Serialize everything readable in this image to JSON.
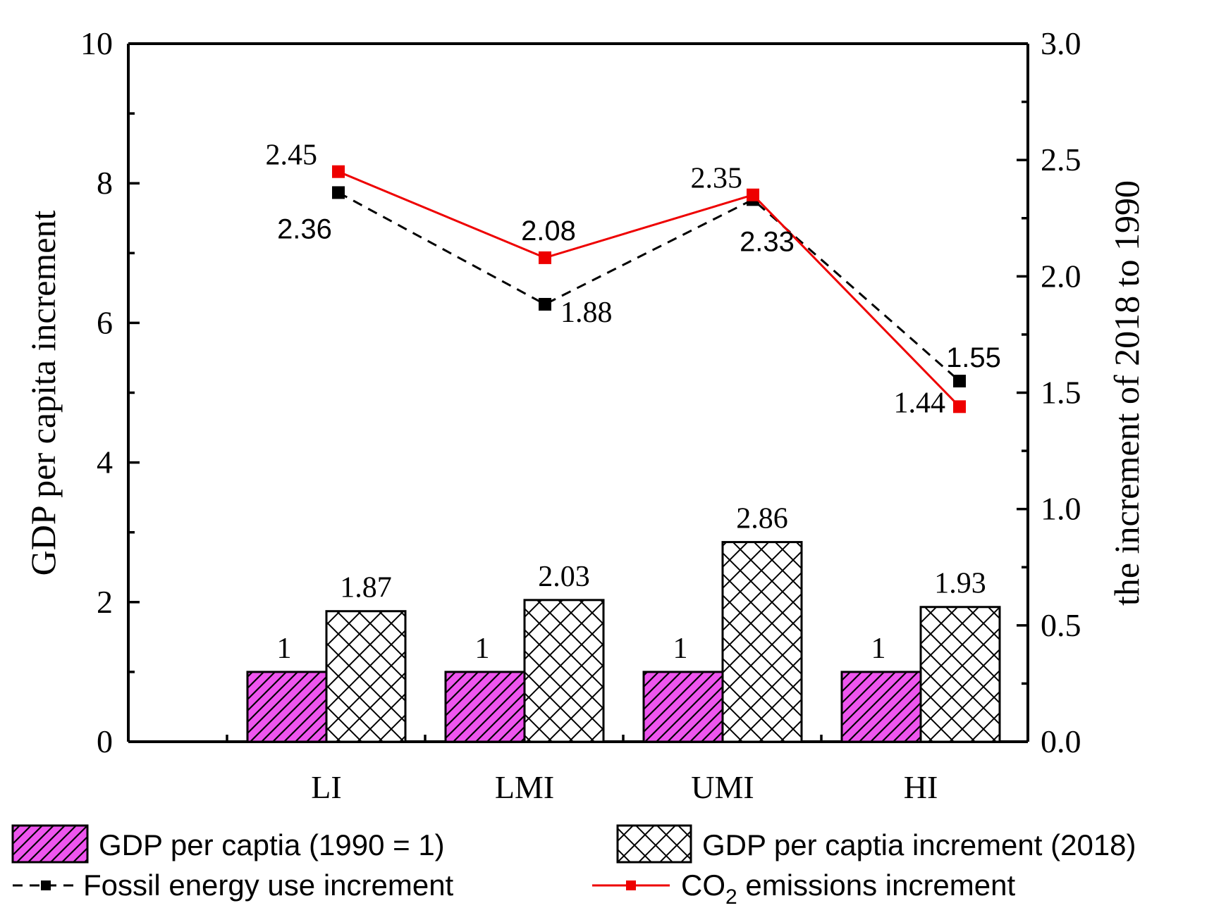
{
  "chart_data": {
    "type": "bar",
    "categories": [
      "LI",
      "LMI",
      "UMI",
      "HI"
    ],
    "y_left": {
      "label": "GDP per capita increment",
      "range": [
        0,
        10
      ],
      "ticks": [
        "0",
        "2",
        "4",
        "6",
        "8",
        "10"
      ]
    },
    "y_right": {
      "label": "the increment of 2018 to 1990",
      "range": [
        0,
        3
      ],
      "ticks": [
        "0.0",
        "0.5",
        "1.0",
        "1.5",
        "2.0",
        "2.5",
        "3.0"
      ]
    },
    "bar_series": [
      {
        "name": "GDP per captia (1990 = 1)",
        "axis": "left",
        "color": "#ee55ee",
        "pattern": "diagonal-hatch",
        "values": [
          1,
          1,
          1,
          1
        ],
        "labels": [
          "1",
          "1",
          "1",
          "1"
        ]
      },
      {
        "name": "GDP per captia increment (2018)",
        "axis": "left",
        "color": "#ffffff",
        "pattern": "crosshatch",
        "values": [
          1.87,
          2.03,
          2.86,
          1.93
        ],
        "labels": [
          "1.87",
          "2.03",
          "2.86",
          "1.93"
        ]
      }
    ],
    "line_series": [
      {
        "name": "Fossil energy use increment",
        "axis": "right",
        "color": "#000000",
        "style": "dashed",
        "marker": "square",
        "values": [
          2.36,
          1.88,
          2.33,
          1.55
        ],
        "labels": [
          "2.36",
          "1.88",
          "2.33",
          "1.55"
        ]
      },
      {
        "name": "CO2 emissions increment",
        "name_main": "CO",
        "name_sub": "2",
        "name_rest": " emissions increment",
        "axis": "right",
        "color": "#ee0000",
        "style": "solid",
        "marker": "square",
        "values": [
          2.45,
          2.08,
          2.35,
          1.44
        ],
        "labels": [
          "2.45",
          "2.08",
          "2.35",
          "1.44"
        ]
      }
    ],
    "legend_position": "bottom"
  }
}
